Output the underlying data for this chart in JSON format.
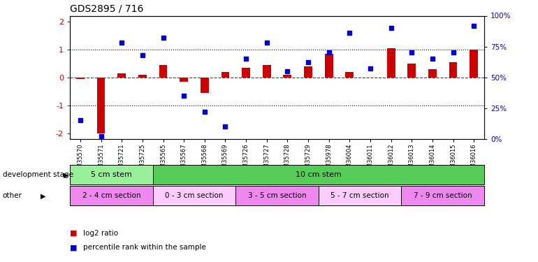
{
  "title": "GDS2895 / 716",
  "samples": [
    "GSM35570",
    "GSM35571",
    "GSM35721",
    "GSM35725",
    "GSM35565",
    "GSM35567",
    "GSM35568",
    "GSM35569",
    "GSM35726",
    "GSM35727",
    "GSM35728",
    "GSM35729",
    "GSM35978",
    "GSM36004",
    "GSM36011",
    "GSM36012",
    "GSM36013",
    "GSM36014",
    "GSM36015",
    "GSM36016"
  ],
  "log2_ratio": [
    -0.05,
    -2.0,
    0.15,
    0.1,
    0.45,
    -0.15,
    -0.55,
    0.2,
    0.35,
    0.45,
    0.1,
    0.4,
    0.85,
    0.2,
    0.0,
    1.05,
    0.5,
    0.3,
    0.55,
    1.0
  ],
  "percentile": [
    15,
    2,
    78,
    68,
    82,
    35,
    22,
    10,
    65,
    78,
    55,
    62,
    70,
    86,
    57,
    90,
    70,
    65,
    70,
    92
  ],
  "ylim": [
    -2.2,
    2.2
  ],
  "bar_color": "#CC0000",
  "dot_color": "#0000CC",
  "dev_stage_groups": [
    {
      "label": "5 cm stem",
      "start": 0,
      "end": 4,
      "color": "#99EE99"
    },
    {
      "label": "10 cm stem",
      "start": 4,
      "end": 20,
      "color": "#55CC55"
    }
  ],
  "other_groups": [
    {
      "label": "2 - 4 cm section",
      "start": 0,
      "end": 4,
      "color": "#EE88EE"
    },
    {
      "label": "0 - 3 cm section",
      "start": 4,
      "end": 8,
      "color": "#FFCCFF"
    },
    {
      "label": "3 - 5 cm section",
      "start": 8,
      "end": 12,
      "color": "#EE88EE"
    },
    {
      "label": "5 - 7 cm section",
      "start": 12,
      "end": 16,
      "color": "#FFCCFF"
    },
    {
      "label": "7 - 9 cm section",
      "start": 16,
      "end": 20,
      "color": "#EE88EE"
    }
  ],
  "hline_color": "#CC0000",
  "dotline_color": "#000000",
  "bg_color": "#FFFFFF",
  "title_fontsize": 10
}
